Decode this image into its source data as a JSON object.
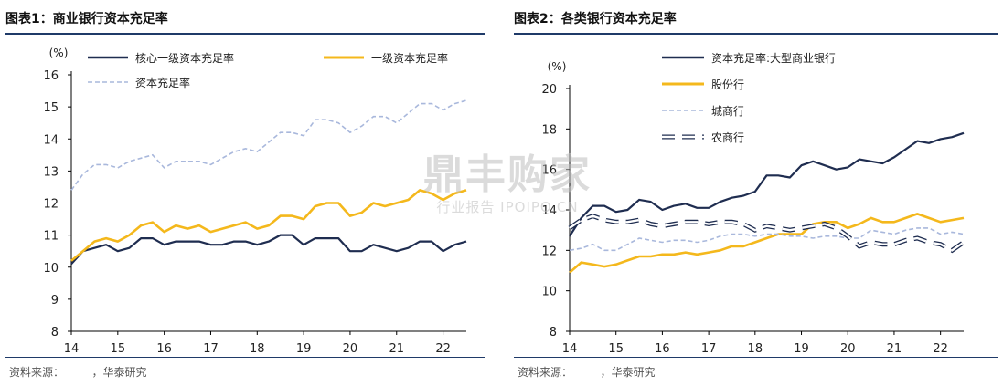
{
  "figures": [
    {
      "title": "图表1：商业银行资本充足率",
      "source": "资料来源：        ，华泰研究"
    },
    {
      "title": "图表2：各类银行资本充足率",
      "source": "资料来源：        ，华泰研究"
    }
  ],
  "watermark": {
    "main": "鼎丰购家",
    "sub": "行业报告 IPOIPO.CN"
  },
  "colors": {
    "navy": "#1f2d50",
    "gold": "#f4b81c",
    "lightblue": "#a9b8dc",
    "rule": "#1f3a68"
  },
  "chart_data": [
    {
      "type": "line",
      "title": "图表1：商业银行资本充足率",
      "unit": "(%)",
      "x": [
        "2014Q1",
        "2014Q2",
        "2014Q3",
        "2014Q4",
        "2015Q1",
        "2015Q2",
        "2015Q3",
        "2015Q4",
        "2016Q1",
        "2016Q2",
        "2016Q3",
        "2016Q4",
        "2017Q1",
        "2017Q2",
        "2017Q3",
        "2017Q4",
        "2018Q1",
        "2018Q2",
        "2018Q3",
        "2018Q4",
        "2019Q1",
        "2019Q2",
        "2019Q3",
        "2019Q4",
        "2020Q1",
        "2020Q2",
        "2020Q3",
        "2020Q4",
        "2021Q1",
        "2021Q2",
        "2021Q3",
        "2021Q4",
        "2022Q1",
        "2022Q2",
        "2022Q3"
      ],
      "x_ticks": [
        "14",
        "15",
        "16",
        "17",
        "18",
        "19",
        "20",
        "21",
        "22"
      ],
      "ylim": [
        8,
        16
      ],
      "yticks": [
        8,
        9,
        10,
        11,
        12,
        13,
        14,
        15,
        16
      ],
      "legend_position": "top-left",
      "series": [
        {
          "name": "核心一级资本充足率",
          "color": "#1f2d50",
          "style": "solid",
          "values": [
            10.1,
            10.5,
            10.6,
            10.7,
            10.5,
            10.6,
            10.9,
            10.9,
            10.7,
            10.8,
            10.8,
            10.8,
            10.7,
            10.7,
            10.8,
            10.8,
            10.7,
            10.8,
            11.0,
            11.0,
            10.7,
            10.9,
            10.9,
            10.9,
            10.5,
            10.5,
            10.7,
            10.6,
            10.5,
            10.6,
            10.8,
            10.8,
            10.5,
            10.7,
            10.8
          ]
        },
        {
          "name": "一级资本充足率",
          "color": "#f4b81c",
          "style": "solid",
          "values": [
            10.2,
            10.5,
            10.8,
            10.9,
            10.8,
            11.0,
            11.3,
            11.4,
            11.1,
            11.3,
            11.2,
            11.3,
            11.1,
            11.2,
            11.3,
            11.4,
            11.2,
            11.3,
            11.6,
            11.6,
            11.5,
            11.9,
            12.0,
            12.0,
            11.6,
            11.7,
            12.0,
            11.9,
            12.0,
            12.1,
            12.4,
            12.3,
            12.1,
            12.3,
            12.4
          ]
        },
        {
          "name": "资本充足率",
          "color": "#a9b8dc",
          "style": "dashed",
          "values": [
            12.4,
            12.9,
            13.2,
            13.2,
            13.1,
            13.3,
            13.4,
            13.5,
            13.1,
            13.3,
            13.3,
            13.3,
            13.2,
            13.4,
            13.6,
            13.7,
            13.6,
            13.9,
            14.2,
            14.2,
            14.1,
            14.6,
            14.6,
            14.5,
            14.2,
            14.4,
            14.7,
            14.7,
            14.5,
            14.8,
            15.1,
            15.1,
            14.9,
            15.1,
            15.2
          ]
        }
      ]
    },
    {
      "type": "line",
      "title": "图表2：各类银行资本充足率",
      "unit": "(%)",
      "x": [
        "2014Q1",
        "2014Q2",
        "2014Q3",
        "2014Q4",
        "2015Q1",
        "2015Q2",
        "2015Q3",
        "2015Q4",
        "2016Q1",
        "2016Q2",
        "2016Q3",
        "2016Q4",
        "2017Q1",
        "2017Q2",
        "2017Q3",
        "2017Q4",
        "2018Q1",
        "2018Q2",
        "2018Q3",
        "2018Q4",
        "2019Q1",
        "2019Q2",
        "2019Q3",
        "2019Q4",
        "2020Q1",
        "2020Q2",
        "2020Q3",
        "2020Q4",
        "2021Q1",
        "2021Q2",
        "2021Q3",
        "2021Q4",
        "2022Q1",
        "2022Q2",
        "2022Q3"
      ],
      "x_ticks": [
        "14",
        "15",
        "16",
        "17",
        "18",
        "19",
        "20",
        "21",
        "22"
      ],
      "ylim": [
        8,
        20
      ],
      "yticks": [
        8,
        10,
        12,
        14,
        16,
        18,
        20
      ],
      "legend_position": "top-left",
      "series": [
        {
          "name": "资本充足率:大型商业银行",
          "color": "#1f2d50",
          "style": "solid",
          "values": [
            12.7,
            13.6,
            14.2,
            14.2,
            13.9,
            14.0,
            14.5,
            14.4,
            14.0,
            14.2,
            14.3,
            14.1,
            14.1,
            14.4,
            14.6,
            14.7,
            14.9,
            15.7,
            15.7,
            15.6,
            16.2,
            16.4,
            16.2,
            16.0,
            16.1,
            16.5,
            16.4,
            16.3,
            16.6,
            17.0,
            17.4,
            17.3,
            17.5,
            17.6,
            17.8
          ]
        },
        {
          "name": "股份行",
          "color": "#f4b81c",
          "style": "solid",
          "values": [
            10.9,
            11.4,
            11.3,
            11.2,
            11.3,
            11.5,
            11.7,
            11.7,
            11.8,
            11.8,
            11.9,
            11.8,
            11.9,
            12.0,
            12.2,
            12.2,
            12.4,
            12.6,
            12.8,
            12.8,
            12.8,
            13.3,
            13.4,
            13.4,
            13.1,
            13.3,
            13.6,
            13.4,
            13.4,
            13.6,
            13.8,
            13.6,
            13.4,
            13.5,
            13.6
          ]
        },
        {
          "name": "城商行",
          "color": "#a9b8dc",
          "style": "dashed",
          "values": [
            12.0,
            12.1,
            12.3,
            12.0,
            12.0,
            12.3,
            12.6,
            12.5,
            12.4,
            12.5,
            12.5,
            12.4,
            12.5,
            12.7,
            12.8,
            12.8,
            12.7,
            12.8,
            12.8,
            12.7,
            12.7,
            12.6,
            12.7,
            12.7,
            12.6,
            12.6,
            13.0,
            12.9,
            12.8,
            13.0,
            13.1,
            13.1,
            12.8,
            12.9,
            12.8
          ]
        },
        {
          "name": "农商行",
          "color": "#1f2d50",
          "style": "hollow-dash",
          "values": [
            13.1,
            13.5,
            13.7,
            13.5,
            13.4,
            13.4,
            13.5,
            13.3,
            13.2,
            13.3,
            13.4,
            13.4,
            13.3,
            13.4,
            13.4,
            13.3,
            13.0,
            13.2,
            13.1,
            13.0,
            13.1,
            13.2,
            13.3,
            13.1,
            12.7,
            12.2,
            12.4,
            12.3,
            12.3,
            12.5,
            12.6,
            12.4,
            12.3,
            12.0,
            12.4
          ]
        }
      ]
    }
  ]
}
